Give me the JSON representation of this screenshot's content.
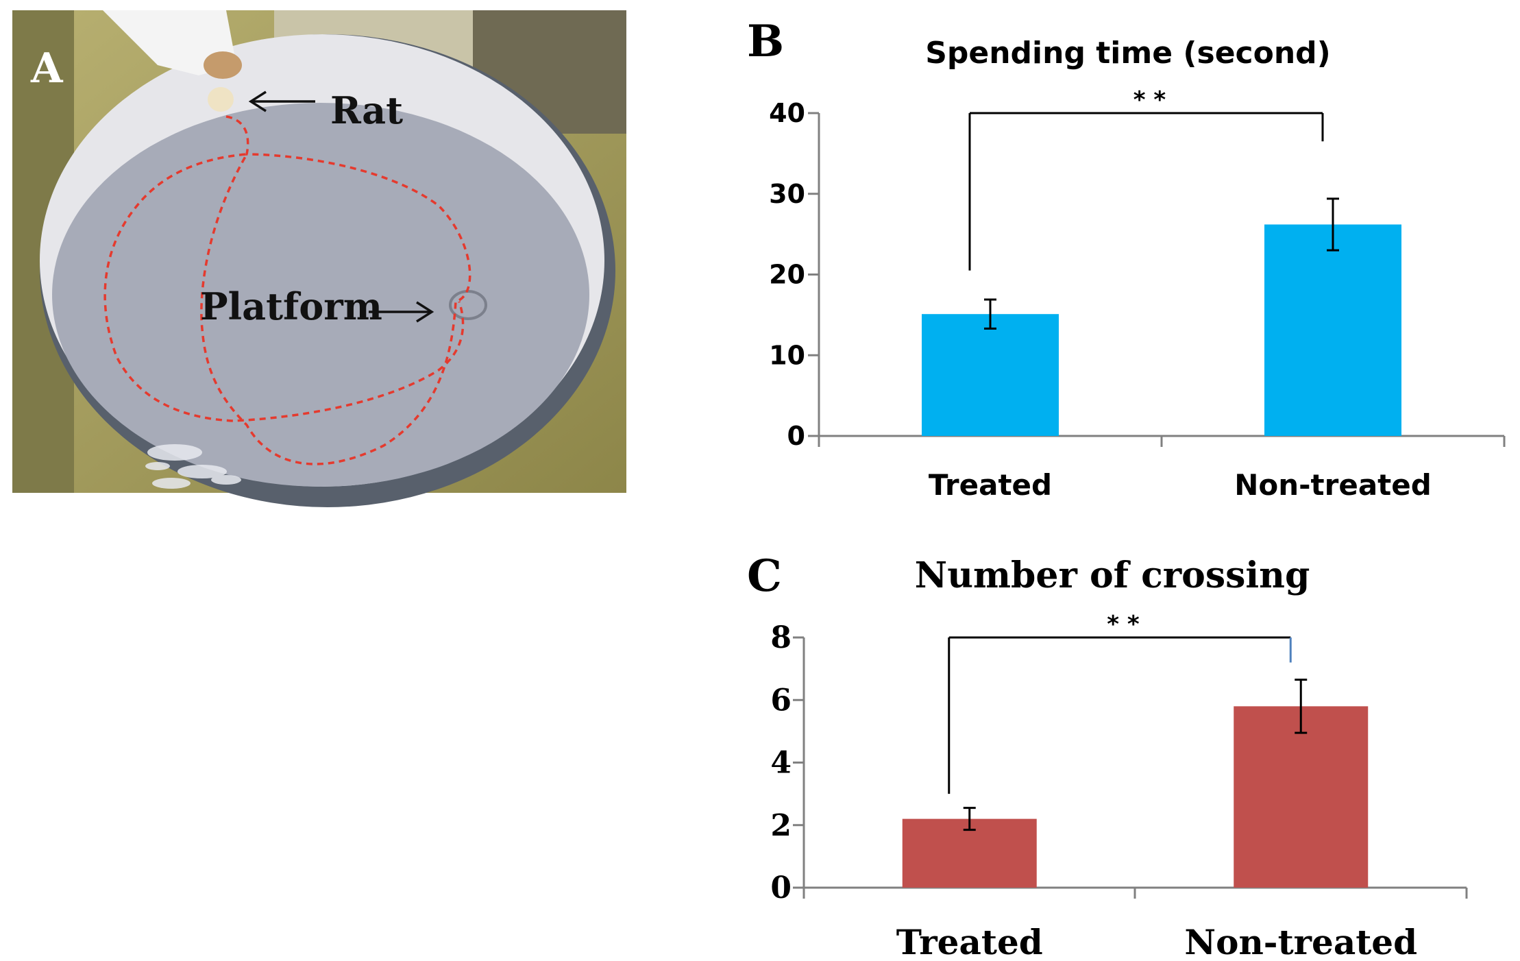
{
  "figure": {
    "panel_a": {
      "letter": "A",
      "rat_label": "Rat",
      "platform_label": "Platform",
      "water_color": "#a7abb8",
      "wall_color": "#e4e4e8",
      "path_color": "#e53a2e"
    }
  },
  "chart_data": [
    {
      "id": "B",
      "type": "bar",
      "letter": "B",
      "title": "Spending time (second)",
      "categories": [
        "Treated",
        "Non-treated"
      ],
      "values": [
        15.1,
        26.2
      ],
      "errors": [
        1.8,
        3.2
      ],
      "ylim": [
        0,
        40
      ],
      "yticks": [
        0,
        10,
        20,
        30,
        40
      ],
      "ytick_labels": [
        "0",
        "10",
        "20",
        "30",
        "40"
      ],
      "color": "#00b0f0",
      "significance": "* *",
      "bracket_y": 40,
      "bracket_left_bottom": 20.5,
      "bracket_right_bottom": 36.5,
      "xlabel": "",
      "ylabel": ""
    },
    {
      "id": "C",
      "type": "bar",
      "letter": "C",
      "title": "Number of crossing",
      "categories": [
        "Treated",
        "Non-treated"
      ],
      "values": [
        2.2,
        5.8
      ],
      "errors": [
        0.35,
        0.85
      ],
      "ylim": [
        0,
        8
      ],
      "yticks": [
        0,
        2,
        4,
        6,
        8
      ],
      "ytick_labels": [
        "0",
        "2",
        "4",
        "6",
        "8"
      ],
      "color": "#c0504d",
      "significance": "* *",
      "bracket_y": 8,
      "bracket_left_bottom": 3.0,
      "bracket_right_bottom": 7.2,
      "xlabel": "",
      "ylabel": ""
    }
  ]
}
